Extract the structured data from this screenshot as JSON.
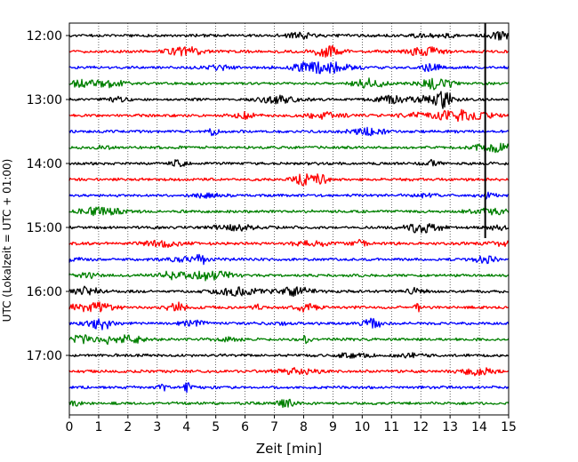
{
  "chart_data": {
    "type": "line",
    "subtype": "seismic helicorder",
    "xlabel": "Zeit  [min]",
    "ylabel": "UTC (Lokalzeit = UTC + 01:00)",
    "xlim": [
      0,
      15
    ],
    "x_ticks": [
      0,
      1,
      2,
      3,
      4,
      5,
      6,
      7,
      8,
      9,
      10,
      11,
      12,
      13,
      14,
      15
    ],
    "y_tick_labels": [
      "12:00",
      "13:00",
      "14:00",
      "15:00",
      "16:00",
      "17:00"
    ],
    "trace_interval_min": 15,
    "grid_x": true,
    "grid_style": "dotted",
    "trace_colors": [
      "#000000",
      "#ff0000",
      "#0000ff",
      "#008000"
    ],
    "traces": [
      {
        "start": "12:00",
        "color": "#000000"
      },
      {
        "start": "12:15",
        "color": "#ff0000"
      },
      {
        "start": "12:30",
        "color": "#0000ff"
      },
      {
        "start": "12:45",
        "color": "#008000"
      },
      {
        "start": "13:00",
        "color": "#000000"
      },
      {
        "start": "13:15",
        "color": "#ff0000"
      },
      {
        "start": "13:30",
        "color": "#0000ff"
      },
      {
        "start": "13:45",
        "color": "#008000"
      },
      {
        "start": "14:00",
        "color": "#000000"
      },
      {
        "start": "14:15",
        "color": "#ff0000"
      },
      {
        "start": "14:30",
        "color": "#0000ff"
      },
      {
        "start": "14:45",
        "color": "#008000"
      },
      {
        "start": "15:00",
        "color": "#000000"
      },
      {
        "start": "15:15",
        "color": "#ff0000"
      },
      {
        "start": "15:30",
        "color": "#0000ff"
      },
      {
        "start": "15:45",
        "color": "#008000"
      },
      {
        "start": "16:00",
        "color": "#000000"
      },
      {
        "start": "16:15",
        "color": "#ff0000"
      },
      {
        "start": "16:30",
        "color": "#0000ff"
      },
      {
        "start": "16:45",
        "color": "#008000"
      },
      {
        "start": "17:00",
        "color": "#000000"
      },
      {
        "start": "17:15",
        "color": "#ff0000"
      },
      {
        "start": "17:30",
        "color": "#0000ff"
      },
      {
        "start": "17:45",
        "color": "#008000"
      }
    ],
    "marker": {
      "x_min": 14.2,
      "from": "12:00",
      "to": "15:00",
      "color": "#000000"
    }
  }
}
